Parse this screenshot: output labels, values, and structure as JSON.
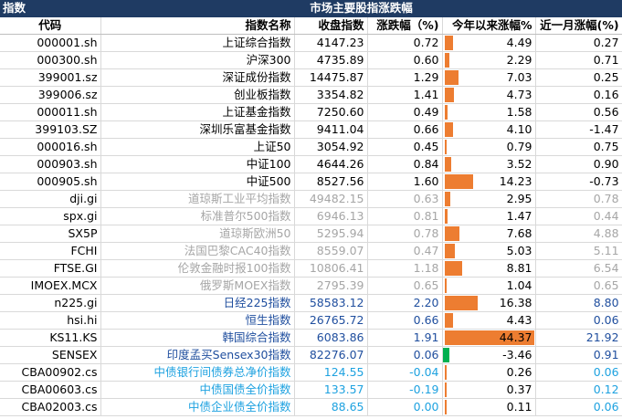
{
  "title_bar": {
    "left": "指数",
    "center": "市场主要股指涨跌幅"
  },
  "headers": [
    "代码",
    "指数名称",
    "收盘指数",
    "涨跌幅（%)",
    "今年以来涨幅%",
    "近一月涨幅(%)"
  ],
  "colors": {
    "header_bg": "#1f3b63",
    "bar_orange": "#ed7d31",
    "bar_green": "#00b050",
    "gray_text": "#a6a6a6",
    "blue_text": "#1f4e9e",
    "cyan_text": "#1ea2e0"
  },
  "bar_scale_max": 44.37,
  "rows": [
    {
      "code": "000001.sh",
      "name": "上证综合指数",
      "close": "4147.23",
      "chg": "0.72",
      "ytd": "4.49",
      "ytd_value": 4.49,
      "month": "0.27",
      "style": "black"
    },
    {
      "code": "000300.sh",
      "name": "沪深300",
      "close": "4735.89",
      "chg": "0.60",
      "ytd": "2.29",
      "ytd_value": 2.29,
      "month": "0.71",
      "style": "black"
    },
    {
      "code": "399001.sz",
      "name": "深证成份指数",
      "close": "14475.87",
      "chg": "1.29",
      "ytd": "7.03",
      "ytd_value": 7.03,
      "month": "0.25",
      "style": "black"
    },
    {
      "code": "399006.sz",
      "name": "创业板指数",
      "close": "3354.82",
      "chg": "1.41",
      "ytd": "4.73",
      "ytd_value": 4.73,
      "month": "0.16",
      "style": "black"
    },
    {
      "code": "000011.sh",
      "name": "上证基金指数",
      "close": "7250.60",
      "chg": "0.49",
      "ytd": "1.58",
      "ytd_value": 1.58,
      "month": "0.56",
      "style": "black"
    },
    {
      "code": "399103.SZ",
      "name": "深圳乐富基金指数",
      "close": "9411.04",
      "chg": "0.66",
      "ytd": "4.10",
      "ytd_value": 4.1,
      "month": "-1.47",
      "style": "black"
    },
    {
      "code": "000016.sh",
      "name": "上证50",
      "close": "3054.92",
      "chg": "0.45",
      "ytd": "0.79",
      "ytd_value": 0.79,
      "month": "0.75",
      "style": "black"
    },
    {
      "code": "000903.sh",
      "name": "中证100",
      "close": "4644.26",
      "chg": "0.84",
      "ytd": "3.52",
      "ytd_value": 3.52,
      "month": "0.90",
      "style": "black"
    },
    {
      "code": "000905.sh",
      "name": "中证500",
      "close": "8527.56",
      "chg": "1.60",
      "ytd": "14.23",
      "ytd_value": 14.23,
      "month": "-0.73",
      "style": "black"
    },
    {
      "code": "dji.gi",
      "name": "道琼斯工业平均指数",
      "close": "49482.15",
      "chg": "0.63",
      "ytd": "2.95",
      "ytd_value": 2.95,
      "month": "0.78",
      "style": "gray"
    },
    {
      "code": "spx.gi",
      "name": "标准普尔500指数",
      "close": "6946.13",
      "chg": "0.81",
      "ytd": "1.47",
      "ytd_value": 1.47,
      "month": "0.44",
      "style": "gray"
    },
    {
      "code": "SX5P",
      "name": "道琼斯欧洲50",
      "close": "5295.94",
      "chg": "0.78",
      "ytd": "7.68",
      "ytd_value": 7.68,
      "month": "4.88",
      "style": "gray"
    },
    {
      "code": "FCHI",
      "name": "法国巴黎CAC40指数",
      "close": "8559.07",
      "chg": "0.47",
      "ytd": "5.03",
      "ytd_value": 5.03,
      "month": "5.11",
      "style": "gray"
    },
    {
      "code": "FTSE.GI",
      "name": "伦敦金融时报100指数",
      "close": "10806.41",
      "chg": "1.18",
      "ytd": "8.81",
      "ytd_value": 8.81,
      "month": "6.54",
      "style": "gray"
    },
    {
      "code": "IMOEX.MCX",
      "name": "俄罗斯MOEX指数",
      "close": "2795.39",
      "chg": "0.65",
      "ytd": "1.04",
      "ytd_value": 1.04,
      "month": "0.65",
      "style": "gray"
    },
    {
      "code": "n225.gi",
      "name": "日经225指数",
      "close": "58583.12",
      "chg": "2.20",
      "ytd": "16.38",
      "ytd_value": 16.38,
      "month": "8.80",
      "style": "blue"
    },
    {
      "code": "hsi.hi",
      "name": "恒生指数",
      "close": "26765.72",
      "chg": "0.66",
      "ytd": "4.43",
      "ytd_value": 4.43,
      "month": "0.06",
      "style": "blue"
    },
    {
      "code": "KS11.KS",
      "name": "韩国综合指数",
      "close": "6083.86",
      "chg": "1.91",
      "ytd": "44.37",
      "ytd_value": 44.37,
      "month": "21.92",
      "style": "blue"
    },
    {
      "code": "SENSEX",
      "name": "印度孟买Sensex30指数",
      "close": "82276.07",
      "chg": "0.06",
      "ytd": "-3.46",
      "ytd_value": -3.46,
      "month": "0.91",
      "style": "blue"
    },
    {
      "code": "CBA00902.cs",
      "name": "中债银行间债券总净价指数",
      "close": "124.55",
      "chg": "-0.04",
      "ytd": "0.26",
      "ytd_value": 0.26,
      "month": "0.06",
      "style": "cyan"
    },
    {
      "code": "CBA00603.cs",
      "name": "中债国债全价指数",
      "close": "133.57",
      "chg": "-0.19",
      "ytd": "0.37",
      "ytd_value": 0.37,
      "month": "0.12",
      "style": "cyan"
    },
    {
      "code": "CBA02003.cs",
      "name": "中债企业债全价指数",
      "close": "88.65",
      "chg": "0.00",
      "ytd": "0.11",
      "ytd_value": 0.11,
      "month": "0.06",
      "style": "cyan"
    }
  ]
}
